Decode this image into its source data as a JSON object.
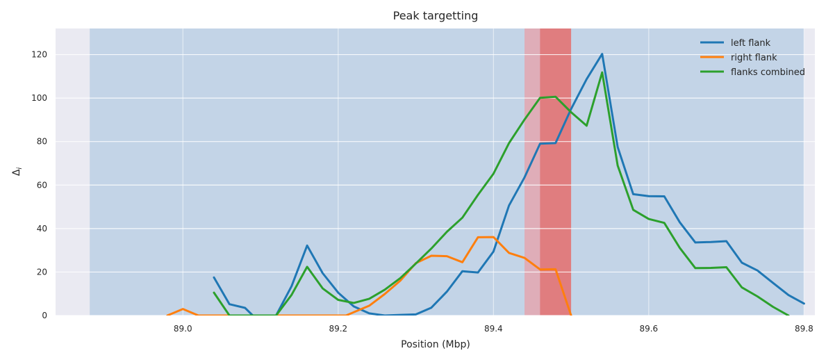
{
  "chart_data": {
    "type": "line",
    "title": "Peak targetting",
    "xlabel": "Position (Mbp)",
    "ylabel": "Δi",
    "xlim": [
      88.836,
      89.814
    ],
    "ylim": [
      0,
      132
    ],
    "xticks": [
      89.0,
      89.2,
      89.4,
      89.6,
      89.8
    ],
    "xtick_labels": [
      "89.0",
      "89.2",
      "89.4",
      "89.6",
      "89.8"
    ],
    "yticks": [
      0,
      20,
      40,
      60,
      80,
      100,
      120
    ],
    "ytick_labels": [
      "0",
      "20",
      "40",
      "60",
      "80",
      "100",
      "120"
    ],
    "grid": true,
    "legend_position": "top-right",
    "background_color": "#eaeaf2",
    "regions": [
      {
        "name": "search-range",
        "x0": 88.88,
        "x1": 89.8,
        "color": "#a8c4e0",
        "opacity": 0.6
      },
      {
        "name": "candidate-region",
        "x0": 89.44,
        "x1": 89.5,
        "color": "#e8a0a8",
        "opacity": 0.75
      },
      {
        "name": "peak-region",
        "x0": 89.46,
        "x1": 89.5,
        "color": "#e07070",
        "opacity": 0.8
      }
    ],
    "series": [
      {
        "name": "left flank",
        "color": "#1f77b4",
        "x": [
          89.04,
          89.06,
          89.08,
          89.09,
          89.12,
          89.14,
          89.16,
          89.18,
          89.2,
          89.22,
          89.24,
          89.26,
          89.28,
          89.3,
          89.32,
          89.34,
          89.36,
          89.38,
          89.4,
          89.42,
          89.44,
          89.46,
          89.48,
          89.5,
          89.52,
          89.54,
          89.56,
          89.58,
          89.6,
          89.62,
          89.64,
          89.66,
          89.68,
          89.7,
          89.72,
          89.74,
          89.76,
          89.78,
          89.8
        ],
        "y": [
          17.5,
          5.2,
          3.5,
          0,
          0,
          13.5,
          32.2,
          19.5,
          10.5,
          4.2,
          1.0,
          0,
          0.3,
          0.5,
          3.6,
          11.0,
          20.4,
          19.8,
          29.4,
          50.6,
          63.5,
          79.0,
          79.3,
          95.0,
          108.7,
          120.3,
          77.5,
          55.8,
          54.9,
          54.8,
          42.9,
          33.6,
          33.8,
          34.2,
          24.3,
          20.7,
          15.0,
          9.4,
          5.5
        ]
      },
      {
        "name": "right flank",
        "color": "#ff7f0e",
        "x": [
          88.98,
          89.0,
          89.02,
          89.12,
          89.13,
          89.21,
          89.24,
          89.26,
          89.28,
          89.3,
          89.32,
          89.34,
          89.36,
          89.38,
          89.4,
          89.42,
          89.44,
          89.46,
          89.48,
          89.5
        ],
        "y": [
          0,
          3.0,
          0,
          0,
          0,
          0,
          4.5,
          9.9,
          16.0,
          24.1,
          27.5,
          27.3,
          24.5,
          36.0,
          36.1,
          28.8,
          26.5,
          21.2,
          21.3,
          0
        ]
      },
      {
        "name": "flanks combined",
        "color": "#2ca02c",
        "x": [
          89.04,
          89.06,
          89.12,
          89.14,
          89.16,
          89.18,
          89.2,
          89.22,
          89.24,
          89.26,
          89.28,
          89.3,
          89.32,
          89.34,
          89.36,
          89.38,
          89.4,
          89.42,
          89.44,
          89.46,
          89.48,
          89.5,
          89.52,
          89.54,
          89.56,
          89.58,
          89.6,
          89.62,
          89.64,
          89.66,
          89.68,
          89.7,
          89.72,
          89.74,
          89.76,
          89.78
        ],
        "y": [
          10.5,
          0,
          0,
          9.5,
          22.4,
          12.5,
          7.2,
          5.8,
          7.7,
          11.9,
          17.2,
          23.9,
          30.8,
          38.5,
          45.0,
          55.5,
          65.2,
          79.3,
          90.1,
          100.1,
          100.6,
          93.5,
          87.3,
          111.8,
          69.0,
          48.6,
          44.4,
          42.6,
          31.1,
          21.8,
          21.9,
          22.2,
          12.9,
          8.8,
          4.0,
          0
        ]
      }
    ]
  }
}
